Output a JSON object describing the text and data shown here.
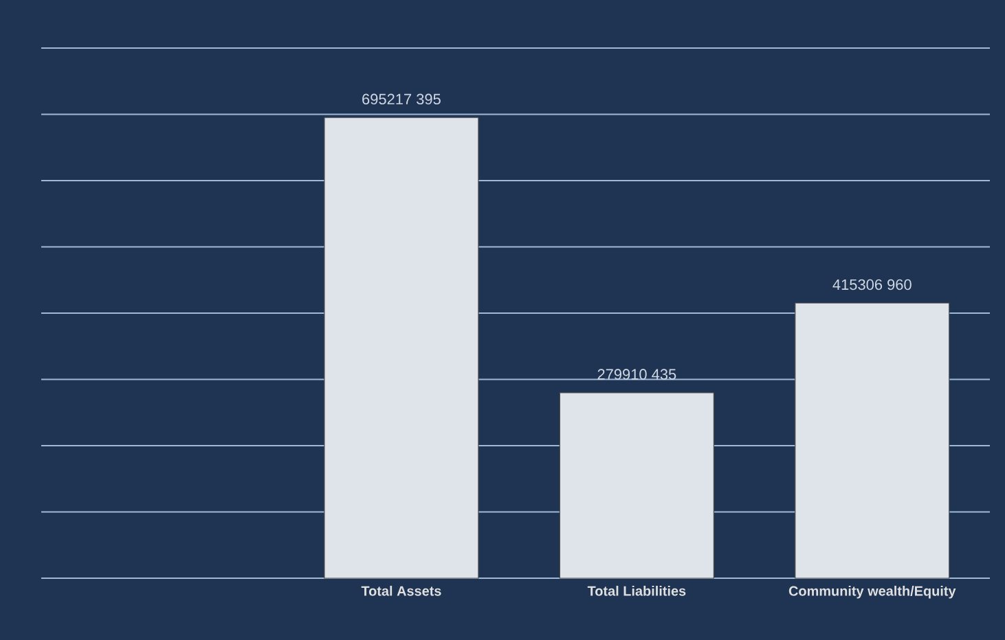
{
  "chart_data": {
    "type": "bar",
    "categories": [
      "Total Assets",
      "Total Liabilities",
      "Community wealth/Equity"
    ],
    "values": [
      695217395,
      279910435,
      415306960
    ],
    "value_labels": [
      "695217 395",
      "279910 435",
      "415306 960"
    ],
    "color": "#dfe3ea",
    "ylim": [
      0,
      800000000
    ],
    "yticks": [
      {
        "value": 0,
        "label": null
      },
      {
        "value": 100000000,
        "label": null
      },
      {
        "value": 200000000,
        "label": null
      },
      {
        "value": 300000000,
        "label": null
      },
      {
        "value": 400000000,
        "label": null
      },
      {
        "value": 500000000,
        "label": null
      },
      {
        "value": 600000000,
        "label": null
      },
      {
        "value": 700000000,
        "label": null
      },
      {
        "value": 800000000,
        "label": null
      }
    ],
    "tick_labels": "x",
    "grid": "y"
  }
}
